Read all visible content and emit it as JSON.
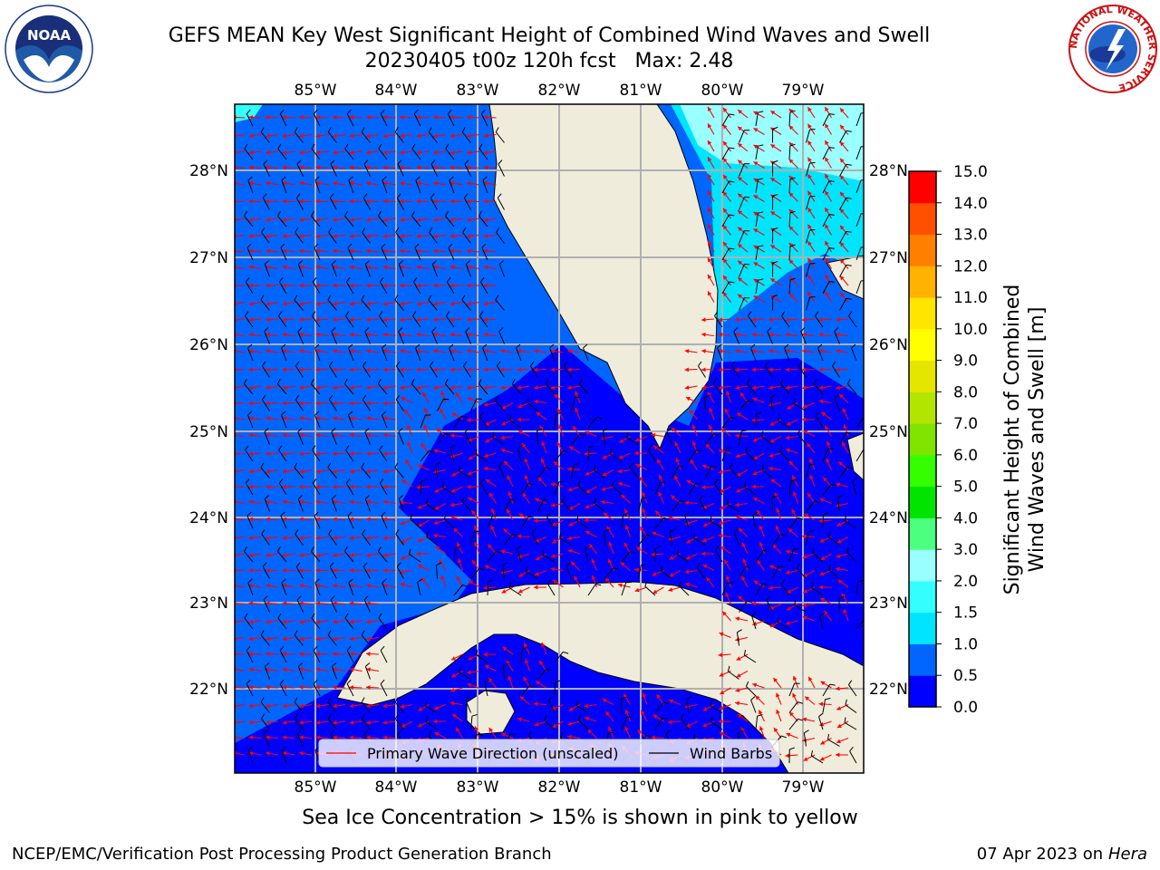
{
  "title": {
    "line1": "GEFS MEAN Key West Significant Height of Combined Wind Waves and Swell",
    "line2": "20230405 t00z 120h fcst   Max: 2.48"
  },
  "logos": {
    "left_name": "noaa-logo",
    "left_text": "NOAA",
    "right_name": "nws-logo",
    "right_ring_text": "NATIONAL WEATHER SERVICE"
  },
  "map": {
    "lon_labels": [
      "85°W",
      "84°W",
      "83°W",
      "82°W",
      "81°W",
      "80°W",
      "79°W"
    ],
    "lat_labels": [
      "28°N",
      "27°N",
      "26°N",
      "25°N",
      "24°N",
      "23°N",
      "22°N"
    ],
    "legend": {
      "wave_label": "Primary Wave Direction (unscaled)",
      "wind_label": "Wind Barbs",
      "wave_color": "#ff0000",
      "wind_color": "#000000"
    }
  },
  "colorbar": {
    "label_line1": "Significant Height of Combined",
    "label_line2": "Wind Waves and Swell [m]",
    "ticks": [
      "0.0",
      "0.5",
      "1.0",
      "1.5",
      "2.0",
      "3.0",
      "4.0",
      "5.0",
      "6.0",
      "7.0",
      "8.0",
      "9.0",
      "10.0",
      "11.0",
      "12.0",
      "13.0",
      "14.0",
      "15.0"
    ],
    "colors": [
      "#0000ff",
      "#0066ff",
      "#00e5ff",
      "#33ffff",
      "#99ffff",
      "#4cff7f",
      "#00e500",
      "#33ff00",
      "#7fe500",
      "#b2e500",
      "#e5e500",
      "#ffff00",
      "#ffe500",
      "#ffb200",
      "#ff8000",
      "#ff5000",
      "#ff0000"
    ]
  },
  "chart_data": {
    "type": "heatmap",
    "title": "GEFS MEAN Key West Significant Height of Combined Wind Waves and Swell",
    "subtitle": "20230405 t00z 120h fcst   Max: 2.48",
    "variable": "Significant Height of Combined Wind Waves and Swell",
    "units": "m",
    "max": 2.48,
    "lon_range": [
      -86,
      -78.3
    ],
    "lat_range": [
      21,
      28.8
    ],
    "colorbar_range": [
      0,
      15
    ],
    "overlays": [
      "Primary Wave Direction (unscaled)",
      "Wind Barbs"
    ],
    "colors": {
      "land": "#efecdc",
      "level_0_0.5": "#0000ff",
      "level_0.5_1.0": "#0066ff",
      "level_1.0_1.5": "#00e5ff",
      "level_1.5_2.0": "#33ffff",
      "level_2.0_3.0": "#99ffff"
    }
  },
  "notes": {
    "sea_ice": "Sea Ice Concentration > 15% is shown in pink to yellow",
    "footer_left": "NCEP/EMC/Verification Post Processing Product Generation Branch",
    "footer_date": "07 Apr 2023 on ",
    "footer_host": "Hera"
  }
}
